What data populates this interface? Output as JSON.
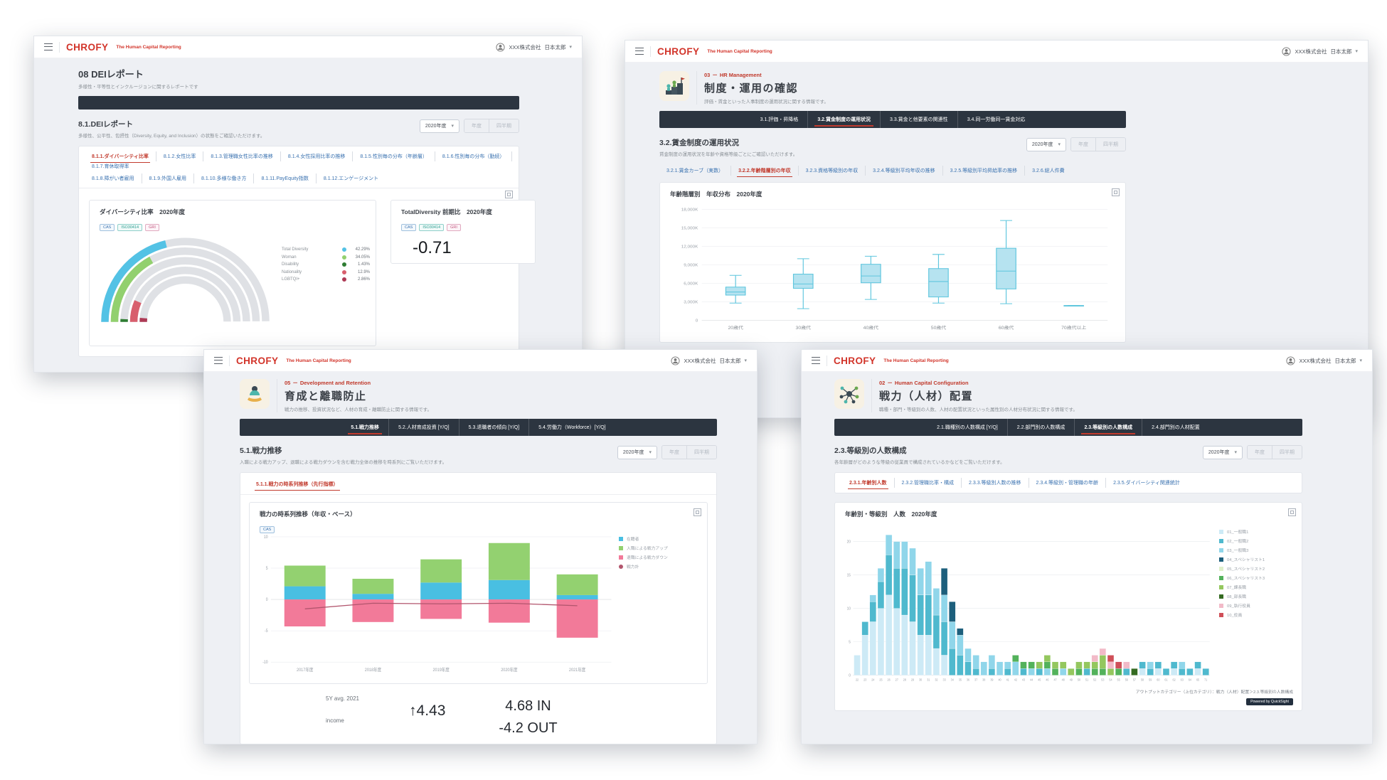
{
  "brand": {
    "logo": "CHROFY",
    "tagline": "The Human Capital Reporting",
    "account_company": "XXX株式会社",
    "account_user": "日本太郎"
  },
  "controls": {
    "year_select": "2020年度",
    "btn_year": "年度",
    "btn_quarter": "四半期"
  },
  "w1": {
    "page_title": "08 DEIレポート",
    "page_subtitle": "多様性・平等性とインクルージョンに関するレポートです",
    "section_title": "8.1.DEIレポート",
    "section_subtitle": "多様性、公平性、包摂性（Diversity, Equity, and Inclusion）の状態をご確認いただけます。",
    "tabs_row1": [
      {
        "label": "8.1.1.ダイバーシティ比率",
        "active": true
      },
      {
        "label": "8.1.2.女性比率"
      },
      {
        "label": "8.1.3.管理職女性比率の推移"
      },
      {
        "label": "8.1.4.女性採用比率の推移"
      },
      {
        "label": "8.1.5.性別毎の分布（年齢層）"
      },
      {
        "label": "8.1.6.性別毎の分布（勤続）"
      },
      {
        "label": "8.1.7.育休取得率"
      }
    ],
    "tabs_row2": [
      {
        "label": "8.1.8.障がい者雇用"
      },
      {
        "label": "8.1.9.外国人雇用"
      },
      {
        "label": "8.1.10.多様な働き方"
      },
      {
        "label": "8.1.11.PayEquity指数"
      },
      {
        "label": "8.1.12.エンゲージメント"
      }
    ],
    "badges": [
      "CAS",
      "ISO30414",
      "GRI"
    ],
    "total_card_title": "TotalDiversity 前期比　2020年度",
    "total_card_value": "-0.71"
  },
  "w2": {
    "hero": {
      "code": "03",
      "category": "HR Management",
      "title": "制度・運用の確認",
      "subtitle": "評価・賃金といった人事制度の運用状況に関する情報です。"
    },
    "nav": [
      {
        "label": "3.1.評価・昇降格"
      },
      {
        "label": "3.2.賃金制度の運用状況",
        "active": true
      },
      {
        "label": "3.3.賃金と他要素の関連性"
      },
      {
        "label": "3.4.同一労働同一賃金対応"
      }
    ],
    "section_title": "3.2.賃金制度の運用状況",
    "section_subtitle": "賃金制度の運用状況を年齢や資格等級ごとにご確認いただけます。",
    "subtabs": [
      {
        "label": "3.2.1.賃金カーブ（実数）"
      },
      {
        "label": "3.2.2.年齢階層別の年収",
        "active": true
      },
      {
        "label": "3.2.3.資格等級別の年収"
      },
      {
        "label": "3.2.4.等級別平均年収の推移"
      },
      {
        "label": "3.2.5.等級別平均昇給率の推移"
      },
      {
        "label": "3.2.6.総人件費"
      }
    ]
  },
  "w3": {
    "hero": {
      "code": "05",
      "category": "Development and Retention",
      "title": "育成と離職防止",
      "subtitle": "戦力の推移、投資状況など、人材の育成・離職防止に関する情報です。"
    },
    "nav": [
      {
        "label": "5.1.戦力推移",
        "active": true
      },
      {
        "label": "5.2.人材育成投資 [Y/Q]"
      },
      {
        "label": "5.3.退職者の傾向 [Y/Q]"
      },
      {
        "label": "5.4.労働力（Workforce）[Y/Q]"
      }
    ],
    "section_title": "5.1.戦力推移",
    "section_subtitle": "入職による戦力アップ、退職による戦力ダウンを含む戦力全体の推移を時系列にご覧いただけます。",
    "subtabs": [
      {
        "label": "5.1.1.戦力の時系列推移（先行指標）",
        "active": true
      }
    ],
    "badges": [
      "CAS"
    ],
    "stats": {
      "period_label": "5Y avg. 2021",
      "metric_label": "income",
      "delta": "↑4.43",
      "in_value": "4.68 IN",
      "out_value": "-4.2 OUT"
    }
  },
  "w4": {
    "hero": {
      "code": "02",
      "category": "Human Capital Configuration",
      "title": "戦力（人材）配置",
      "subtitle": "職種・部門・等級別の人数、人材の配置状況といった属性別の人材分布状況に関する情報です。"
    },
    "nav": [
      {
        "label": "2.1.職種別の人数構成 [Y/Q]"
      },
      {
        "label": "2.2.部門別の人数構成"
      },
      {
        "label": "2.3.等級別の人数構成",
        "active": true
      },
      {
        "label": "2.4.部門別の人材配置"
      }
    ],
    "section_title": "2.3.等級別の人数構成",
    "section_subtitle": "各年齢層がどのような等級の従業員で構成されているかなどをご覧いただけます。",
    "subtabs": [
      {
        "label": "2.3.1.年齢別人数",
        "active": true
      },
      {
        "label": "2.3.2.管理職比率・構成"
      },
      {
        "label": "2.3.3.等級別人数の推移"
      },
      {
        "label": "2.3.4.等級別・管理職の年齢"
      },
      {
        "label": "2.3.5.ダイバーシティ関連統計"
      }
    ],
    "footer_note": "アウトプットカテゴリー（上位カテゴリ）：戦力（人材）配置＞2.3.等級別の人数構成",
    "powered_by": "Powered by QuickSight"
  },
  "chart_data": [
    {
      "id": "dei-gauge",
      "type": "pie",
      "variant": "semi-donut-multi-ring",
      "title": "ダイバーシティ比率　2020年度",
      "track_color": "#dfe1e5",
      "legend_position": "right",
      "rings": [
        {
          "label": "Total Diversity",
          "percent": 42.29,
          "color": "#53c2e5"
        },
        {
          "label": "Woman",
          "percent": 34.05,
          "color": "#92d06e"
        },
        {
          "label": "Disability",
          "percent": 1.43,
          "color": "#2f7d33"
        },
        {
          "label": "Nationality",
          "percent": 12.9,
          "color": "#d85f6d"
        },
        {
          "label": "LGBTQI+",
          "percent": 2.86,
          "color": "#ad3a55"
        }
      ]
    },
    {
      "id": "salary-box",
      "type": "table",
      "variant": "boxplot",
      "title": "年齢階層別　年収分布　2020年度",
      "categories": [
        "20歳代",
        "30歳代",
        "40歳代",
        "50歳代",
        "60歳代",
        "70歳代以上"
      ],
      "ylim": [
        0,
        18000
      ],
      "yticks": [
        "0",
        "3,000K",
        "6,000K",
        "9,000K",
        "12,000K",
        "15,000K",
        "18,000K"
      ],
      "grid": true,
      "box_fill": "#b6e3f0",
      "box_stroke": "#5fc6de",
      "boxes": [
        {
          "min": 2800,
          "q1": 4100,
          "med": 4600,
          "q3": 5400,
          "max": 7300
        },
        {
          "min": 1900,
          "q1": 5200,
          "med": 5900,
          "q3": 7500,
          "max": 10000
        },
        {
          "min": 3400,
          "q1": 6100,
          "med": 7200,
          "q3": 9100,
          "max": 10400
        },
        {
          "min": 2800,
          "q1": 3800,
          "med": 6300,
          "q3": 8400,
          "max": 10700
        },
        {
          "min": 2700,
          "q1": 5100,
          "med": 8000,
          "q3": 11700,
          "max": 16200
        },
        {
          "min": 2400,
          "q1": 2400,
          "med": 2400,
          "q3": 2400,
          "max": 2400
        }
      ]
    },
    {
      "id": "power-trend",
      "type": "bar",
      "variant": "stacked-with-line",
      "title": "戦力の時系列推移（年収・ベース）",
      "categories": [
        "2017年度",
        "2018年度",
        "2019年度",
        "2020年度",
        "2021年度"
      ],
      "ylim": [
        -10,
        10
      ],
      "yticks": [
        10,
        5,
        0,
        -5,
        -10
      ],
      "grid": true,
      "legend_position": "right",
      "series": [
        {
          "name": "在籍者",
          "color": "#49bfe2",
          "values": [
            2.1,
            0.9,
            2.7,
            3.1,
            0.7
          ]
        },
        {
          "name": "入職による戦力アップ",
          "color": "#93d170",
          "values": [
            3.3,
            2.4,
            3.7,
            5.9,
            3.3
          ]
        },
        {
          "name": "退職による戦力ダウン",
          "color": "#f27a99",
          "values": [
            -4.3,
            -3.6,
            -3.1,
            -3.7,
            -6.1
          ]
        }
      ],
      "line": {
        "name": "戦力計",
        "color": "#b2556d",
        "values": [
          -1.5,
          -0.6,
          -0.7,
          -0.6,
          -1.0
        ]
      }
    },
    {
      "id": "age-grade",
      "type": "bar",
      "variant": "stacked-histogram",
      "title": "年齢別・等級別　人数　2020年度",
      "xlabel": "",
      "ylabel": "",
      "ylim": [
        0,
        22
      ],
      "yticks": [
        0,
        5,
        10,
        15,
        20
      ],
      "grid": true,
      "legend_position": "right",
      "grades": [
        {
          "name": "01_一般職1",
          "color": "#cdeaf6"
        },
        {
          "name": "02_一般職2",
          "color": "#4fb9ce"
        },
        {
          "name": "03_一般職3",
          "color": "#90d6ea"
        },
        {
          "name": "04_スペシャリスト1",
          "color": "#1d5f7c"
        },
        {
          "name": "05_スペシャリスト2",
          "color": "#dff0ca"
        },
        {
          "name": "06_スペシャリスト3",
          "color": "#53b25b"
        },
        {
          "name": "07_課長職",
          "color": "#94c75e"
        },
        {
          "name": "08_部長職",
          "color": "#356b22"
        },
        {
          "name": "09_執行役員",
          "color": "#f2bac8"
        },
        {
          "name": "10_役員",
          "color": "#cf4f58"
        }
      ],
      "bars": [
        {
          "a": "22",
          "s": [
            [
              0,
              3
            ]
          ]
        },
        {
          "a": "23",
          "s": [
            [
              0,
              6
            ],
            [
              1,
              2
            ]
          ]
        },
        {
          "a": "24",
          "s": [
            [
              0,
              8
            ],
            [
              1,
              3
            ],
            [
              2,
              1
            ]
          ]
        },
        {
          "a": "25",
          "s": [
            [
              0,
              10
            ],
            [
              1,
              4
            ],
            [
              2,
              2
            ]
          ]
        },
        {
          "a": "26",
          "s": [
            [
              0,
              12
            ],
            [
              1,
              6
            ],
            [
              2,
              3
            ]
          ]
        },
        {
          "a": "27",
          "s": [
            [
              0,
              10
            ],
            [
              1,
              6
            ],
            [
              2,
              4
            ]
          ]
        },
        {
          "a": "28",
          "s": [
            [
              0,
              9
            ],
            [
              1,
              7
            ],
            [
              2,
              4
            ]
          ]
        },
        {
          "a": "29",
          "s": [
            [
              0,
              8
            ],
            [
              1,
              7
            ],
            [
              2,
              4
            ]
          ]
        },
        {
          "a": "30",
          "s": [
            [
              0,
              6
            ],
            [
              1,
              6
            ],
            [
              2,
              4
            ]
          ]
        },
        {
          "a": "31",
          "s": [
            [
              0,
              6
            ],
            [
              1,
              6
            ],
            [
              2,
              5
            ]
          ]
        },
        {
          "a": "32",
          "s": [
            [
              0,
              4
            ],
            [
              1,
              5
            ],
            [
              2,
              4
            ]
          ]
        },
        {
          "a": "33",
          "s": [
            [
              0,
              3
            ],
            [
              1,
              5
            ],
            [
              2,
              4
            ],
            [
              3,
              4
            ]
          ]
        },
        {
          "a": "34",
          "s": [
            [
              1,
              4
            ],
            [
              2,
              4
            ],
            [
              3,
              3
            ]
          ]
        },
        {
          "a": "35",
          "s": [
            [
              1,
              3
            ],
            [
              2,
              3
            ],
            [
              3,
              1
            ]
          ]
        },
        {
          "a": "36",
          "s": [
            [
              1,
              2
            ],
            [
              2,
              2
            ]
          ]
        },
        {
          "a": "37",
          "s": [
            [
              1,
              1
            ],
            [
              2,
              2
            ]
          ]
        },
        {
          "a": "38",
          "s": [
            [
              2,
              2
            ]
          ]
        },
        {
          "a": "39",
          "s": [
            [
              1,
              1
            ],
            [
              2,
              2
            ]
          ]
        },
        {
          "a": "40",
          "s": [
            [
              2,
              2
            ]
          ]
        },
        {
          "a": "41",
          "s": [
            [
              1,
              1
            ],
            [
              2,
              1
            ]
          ]
        },
        {
          "a": "42",
          "s": [
            [
              2,
              2
            ],
            [
              5,
              1
            ]
          ]
        },
        {
          "a": "43",
          "s": [
            [
              1,
              1
            ],
            [
              5,
              1
            ]
          ]
        },
        {
          "a": "44",
          "s": [
            [
              2,
              1
            ],
            [
              5,
              1
            ]
          ]
        },
        {
          "a": "45",
          "s": [
            [
              1,
              1
            ],
            [
              6,
              1
            ]
          ]
        },
        {
          "a": "46",
          "s": [
            [
              2,
              1
            ],
            [
              5,
              1
            ],
            [
              6,
              1
            ]
          ]
        },
        {
          "a": "47",
          "s": [
            [
              5,
              1
            ],
            [
              6,
              1
            ]
          ]
        },
        {
          "a": "48",
          "s": [
            [
              2,
              1
            ],
            [
              6,
              1
            ]
          ]
        },
        {
          "a": "49",
          "s": [
            [
              6,
              1
            ]
          ]
        },
        {
          "a": "50",
          "s": [
            [
              5,
              1
            ],
            [
              6,
              1
            ]
          ]
        },
        {
          "a": "51",
          "s": [
            [
              1,
              1
            ],
            [
              6,
              1
            ]
          ]
        },
        {
          "a": "52",
          "s": [
            [
              5,
              1
            ],
            [
              6,
              1
            ],
            [
              8,
              1
            ]
          ]
        },
        {
          "a": "53",
          "s": [
            [
              5,
              1
            ],
            [
              6,
              2
            ],
            [
              8,
              1
            ]
          ]
        },
        {
          "a": "54",
          "s": [
            [
              6,
              1
            ],
            [
              8,
              1
            ],
            [
              9,
              1
            ]
          ]
        },
        {
          "a": "55",
          "s": [
            [
              5,
              1
            ],
            [
              9,
              1
            ]
          ]
        },
        {
          "a": "56",
          "s": [
            [
              1,
              1
            ],
            [
              8,
              1
            ]
          ]
        },
        {
          "a": "57",
          "s": [
            [
              7,
              1
            ]
          ]
        },
        {
          "a": "58",
          "s": [
            [
              0,
              1
            ],
            [
              1,
              1
            ]
          ]
        },
        {
          "a": "59",
          "s": [
            [
              1,
              1
            ],
            [
              2,
              1
            ]
          ]
        },
        {
          "a": "60",
          "s": [
            [
              0,
              1
            ],
            [
              1,
              1
            ]
          ]
        },
        {
          "a": "61",
          "s": [
            [
              1,
              1
            ]
          ]
        },
        {
          "a": "62",
          "s": [
            [
              0,
              1
            ],
            [
              1,
              1
            ]
          ]
        },
        {
          "a": "63",
          "s": [
            [
              1,
              1
            ],
            [
              2,
              1
            ]
          ]
        },
        {
          "a": "64",
          "s": [
            [
              1,
              1
            ]
          ]
        },
        {
          "a": "65",
          "s": [
            [
              0,
              1
            ],
            [
              1,
              1
            ]
          ]
        },
        {
          "a": "71",
          "s": [
            [
              1,
              1
            ]
          ]
        }
      ]
    }
  ]
}
